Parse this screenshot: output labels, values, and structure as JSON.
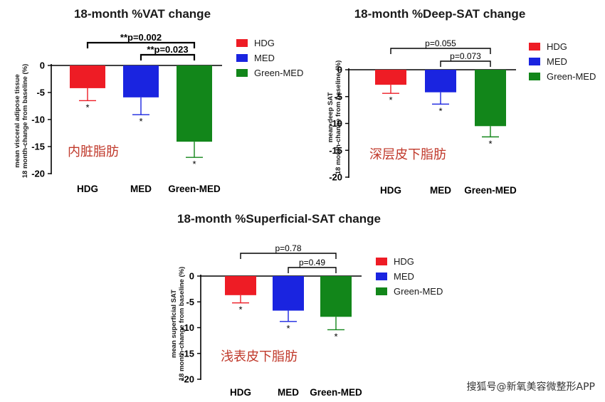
{
  "colors": {
    "HDG": "#ee1c25",
    "MED": "#1a24e0",
    "Green-MED": "#12861a",
    "axis": "#000000"
  },
  "legend": [
    "HDG",
    "MED",
    "Green-MED"
  ],
  "watermark": "搜狐号@新氧美容微整形APP",
  "chart_data": [
    {
      "type": "bar",
      "title": "18-month %VAT change",
      "ylabel_line1": "mean visceral adipose tissue",
      "ylabel_line2": "18 month-change from baseline (%)",
      "categories": [
        "HDG",
        "MED",
        "Green-MED"
      ],
      "values": [
        -4.2,
        -5.9,
        -14.1
      ],
      "errors": [
        2.3,
        3.2,
        2.9
      ],
      "significance": [
        "*",
        "*",
        "*"
      ],
      "ylim": [
        -20,
        0
      ],
      "yticks": [
        0,
        -5,
        -10,
        -15,
        -20
      ],
      "annotation_cn": "内脏脂肪",
      "brackets": [
        {
          "from": 0,
          "to": 2,
          "label": "**p=0.002",
          "bold": true
        },
        {
          "from": 1,
          "to": 2,
          "label": "**p=0.023",
          "bold": true
        }
      ]
    },
    {
      "type": "bar",
      "title": "18-month %Deep-SAT change",
      "ylabel_line1": "mean deep SAT",
      "ylabel_line2": "18 month-change from baseline (%)",
      "categories": [
        "HDG",
        "MED",
        "Green-MED"
      ],
      "values": [
        -2.8,
        -4.2,
        -10.5
      ],
      "errors": [
        1.6,
        2.2,
        2.0
      ],
      "significance": [
        "*",
        "*",
        "*"
      ],
      "ylim": [
        -20,
        0
      ],
      "yticks": [
        0,
        -5,
        -10,
        -15,
        -20
      ],
      "annotation_cn": "深层皮下脂肪",
      "brackets": [
        {
          "from": 0,
          "to": 2,
          "label": "p=0.055",
          "bold": false
        },
        {
          "from": 1,
          "to": 2,
          "label": "p=0.073",
          "bold": false
        }
      ]
    },
    {
      "type": "bar",
      "title": "18-month %Superficial-SAT change",
      "ylabel_line1": "mean superficial SAT",
      "ylabel_line2": "18 month-change from baseline (%)",
      "categories": [
        "HDG",
        "MED",
        "Green-MED"
      ],
      "values": [
        -3.7,
        -6.7,
        -7.9
      ],
      "errors": [
        1.5,
        2.1,
        2.5
      ],
      "significance": [
        "*",
        "*",
        "*"
      ],
      "ylim": [
        -20,
        0
      ],
      "yticks": [
        0,
        -5,
        -10,
        -15,
        -20
      ],
      "annotation_cn": "浅表皮下脂肪",
      "brackets": [
        {
          "from": 0,
          "to": 2,
          "label": "p=0.78",
          "bold": false
        },
        {
          "from": 1,
          "to": 2,
          "label": "p=0.49",
          "bold": false
        }
      ]
    }
  ]
}
